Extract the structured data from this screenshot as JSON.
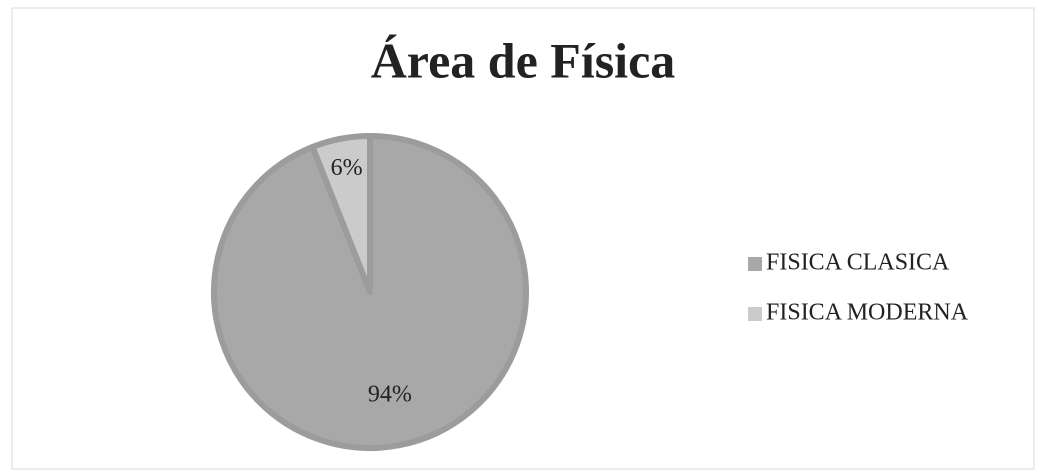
{
  "chart_data": {
    "type": "pie",
    "title": "Área de Física",
    "categories": [
      "FISICA CLASICA",
      "FISICA MODERNA"
    ],
    "values": [
      94,
      6
    ],
    "value_labels": [
      "94%",
      "6%"
    ],
    "colors": [
      "#a8a8a8",
      "#cbcbcb"
    ],
    "legend": "right"
  }
}
